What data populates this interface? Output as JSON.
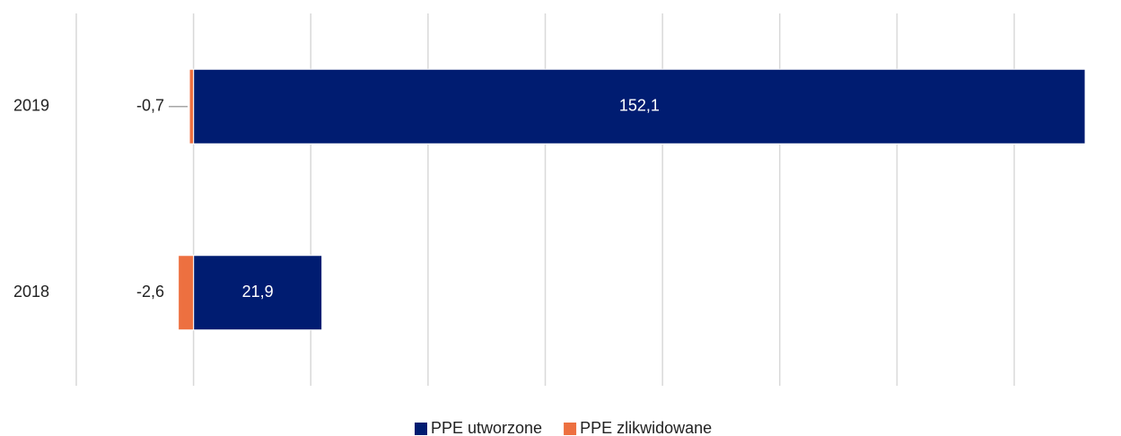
{
  "chart_data": {
    "type": "bar",
    "orientation": "horizontal",
    "stacked": true,
    "categories": [
      "2019",
      "2018"
    ],
    "series": [
      {
        "name": "PPE utworzone",
        "color": "#001c71",
        "values": [
          152.1,
          21.9
        ],
        "value_labels": [
          "152,1",
          "21,9"
        ]
      },
      {
        "name": "PPE zlikwidowane",
        "color": "#ed7040",
        "values": [
          -0.7,
          -2.6
        ],
        "value_labels": [
          "-0,7",
          "-2,6"
        ]
      }
    ],
    "xlim": [
      -20,
      155
    ],
    "xticks": [
      -20,
      0,
      20,
      40,
      60,
      80,
      100,
      120,
      140
    ],
    "grid": true,
    "legend": "bottom"
  }
}
